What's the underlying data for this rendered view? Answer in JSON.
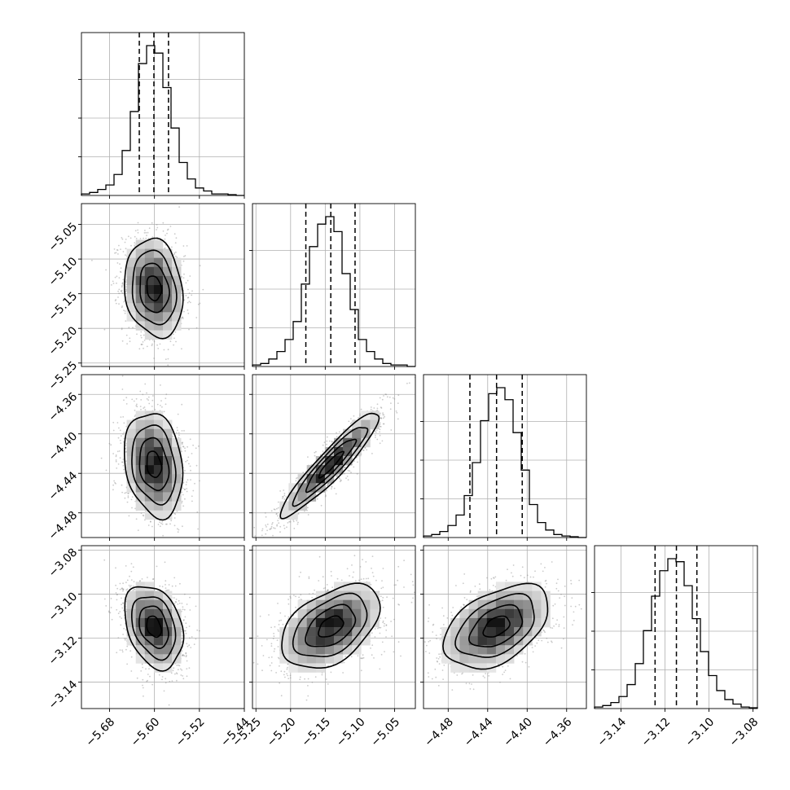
{
  "chart_data": {
    "type": "corner",
    "grid": true,
    "parameters": [
      {
        "xlim": [
          -5.73,
          -5.44
        ],
        "ticks": [
          -5.68,
          -5.6,
          -5.52,
          -5.44
        ],
        "tick_labels": [
          "−5.68",
          "−5.60",
          "−5.52",
          "−5.44"
        ],
        "quantiles": [
          -5.627,
          -5.601,
          -5.575
        ],
        "hist": [
          1,
          2,
          4,
          7,
          14,
          30,
          56,
          88,
          100,
          95,
          72,
          45,
          22,
          11,
          5,
          3,
          1,
          1,
          0.5,
          0
        ]
      },
      {
        "xlim": [
          -5.255,
          -5.02
        ],
        "ticks": [
          -5.25,
          -5.2,
          -5.15,
          -5.1,
          -5.05
        ],
        "tick_labels": [
          "−5.25",
          "−5.20",
          "−5.15",
          "−5.10",
          "−5.05"
        ],
        "quantiles": [
          -5.178,
          -5.142,
          -5.107
        ],
        "hist": [
          1,
          2,
          5,
          10,
          18,
          30,
          55,
          80,
          95,
          100,
          90,
          62,
          38,
          18,
          10,
          5,
          2,
          1,
          1,
          0
        ]
      },
      {
        "xlim": [
          -4.505,
          -4.34
        ],
        "ticks": [
          -4.48,
          -4.44,
          -4.4,
          -4.36
        ],
        "tick_labels": [
          "−4.48",
          "−4.44",
          "−4.40",
          "−4.36"
        ],
        "quantiles": [
          -4.458,
          -4.431,
          -4.405
        ],
        "hist": [
          1,
          2,
          4,
          8,
          15,
          28,
          50,
          78,
          96,
          100,
          92,
          70,
          45,
          22,
          10,
          5,
          2,
          1,
          0.5,
          0
        ]
      },
      {
        "xlim": [
          -3.152,
          -3.078
        ],
        "ticks": [
          -3.14,
          -3.12,
          -3.1,
          -3.08
        ],
        "tick_labels": [
          "−3.14",
          "−3.12",
          "−3.10",
          "−3.08"
        ],
        "quantiles": [
          -3.1245,
          -3.1148,
          -3.1055
        ],
        "hist": [
          1,
          2,
          4,
          8,
          16,
          30,
          52,
          75,
          92,
          100,
          98,
          82,
          60,
          38,
          22,
          12,
          6,
          3,
          1,
          0.5
        ]
      }
    ],
    "pairs": [
      {
        "row": 1,
        "col": 0,
        "rho": -0.15
      },
      {
        "row": 2,
        "col": 0,
        "rho": -0.2
      },
      {
        "row": 2,
        "col": 1,
        "rho": 0.93
      },
      {
        "row": 3,
        "col": 0,
        "rho": -0.3
      },
      {
        "row": 3,
        "col": 1,
        "rho": 0.45
      },
      {
        "row": 3,
        "col": 2,
        "rho": 0.45
      }
    ],
    "contour_levels": [
      0.5,
      1.0,
      1.5,
      2.0
    ]
  }
}
